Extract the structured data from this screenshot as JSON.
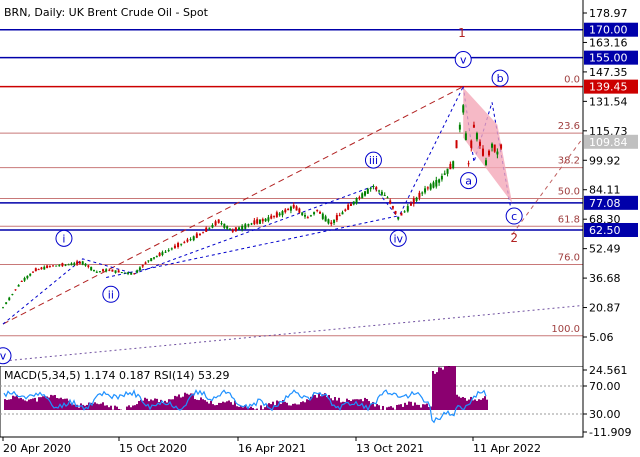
{
  "chart_data": {
    "type": "line",
    "title": "BRN, Daily:  UK Brent Crude Oil - Spot",
    "price_axis": {
      "min": -15.0,
      "max": 190.0,
      "ticks": [
        178.97,
        163.16,
        147.35,
        131.54,
        115.73,
        99.92,
        84.11,
        68.3,
        52.49,
        36.68,
        20.87,
        5.06
      ]
    },
    "time_axis": {
      "labels": [
        "20 Apr 2020",
        "15 Oct 2020",
        "16 Apr 2021",
        "13 Oct 2021",
        "11 Apr 2022"
      ]
    },
    "current_price": "109.84",
    "horizontal_levels": [
      {
        "value": 170.0,
        "label": "170.00",
        "color": "#0000aa"
      },
      {
        "value": 155.0,
        "label": "155.00",
        "color": "#0000aa"
      },
      {
        "value": 139.45,
        "label": "139.45",
        "color": "#cc0000"
      },
      {
        "value": 77.08,
        "label": "77.08",
        "color": "#0000aa"
      },
      {
        "value": 62.5,
        "label": "62.50",
        "color": "#0000aa"
      }
    ],
    "fibonacci_levels": [
      {
        "value": 139.45,
        "label": "0.0"
      },
      {
        "value": 114.5,
        "label": "23.6"
      },
      {
        "value": 96.0,
        "label": "38.2"
      },
      {
        "value": 79.4,
        "label": "50.0"
      },
      {
        "value": 64.5,
        "label": "61.8"
      },
      {
        "value": 44.0,
        "label": "76.0"
      },
      {
        "value": 5.7,
        "label": "100.0"
      }
    ],
    "wave_labels": {
      "minor": [
        "i",
        "ii",
        "iii",
        "iv",
        "v"
      ],
      "intermediate": [
        "1",
        "2"
      ],
      "correction": [
        "a",
        "b",
        "c"
      ],
      "origin": "v"
    },
    "price_path": [
      {
        "date": "2020-04-20",
        "value": 21
      },
      {
        "date": "2020-05-04",
        "value": 28
      },
      {
        "date": "2020-05-18",
        "value": 35
      },
      {
        "date": "2020-06-08",
        "value": 41
      },
      {
        "date": "2020-06-29",
        "value": 43
      },
      {
        "date": "2020-07-27",
        "value": 44
      },
      {
        "date": "2020-08-17",
        "value": 45
      },
      {
        "date": "2020-09-07",
        "value": 40
      },
      {
        "date": "2020-09-21",
        "value": 41
      },
      {
        "date": "2020-11-02",
        "value": 39
      },
      {
        "date": "2020-11-23",
        "value": 46
      },
      {
        "date": "2020-12-14",
        "value": 50
      },
      {
        "date": "2021-01-11",
        "value": 55
      },
      {
        "date": "2021-02-08",
        "value": 60
      },
      {
        "date": "2021-03-08",
        "value": 67
      },
      {
        "date": "2021-03-29",
        "value": 62
      },
      {
        "date": "2021-04-26",
        "value": 66
      },
      {
        "date": "2021-05-17",
        "value": 68
      },
      {
        "date": "2021-06-07",
        "value": 71
      },
      {
        "date": "2021-06-28",
        "value": 75
      },
      {
        "date": "2021-07-19",
        "value": 69
      },
      {
        "date": "2021-08-02",
        "value": 73
      },
      {
        "date": "2021-08-23",
        "value": 66
      },
      {
        "date": "2021-09-13",
        "value": 73
      },
      {
        "date": "2021-10-04",
        "value": 80
      },
      {
        "date": "2021-10-25",
        "value": 86
      },
      {
        "date": "2021-11-15",
        "value": 80
      },
      {
        "date": "2021-12-01",
        "value": 69
      },
      {
        "date": "2021-12-20",
        "value": 76
      },
      {
        "date": "2022-01-10",
        "value": 84
      },
      {
        "date": "2022-01-31",
        "value": 89
      },
      {
        "date": "2022-02-21",
        "value": 98
      },
      {
        "date": "2022-03-08",
        "value": 128
      },
      {
        "date": "2022-03-16",
        "value": 98
      },
      {
        "date": "2022-03-24",
        "value": 118
      },
      {
        "date": "2022-04-11",
        "value": 99
      },
      {
        "date": "2022-04-20",
        "value": 108
      },
      {
        "date": "2022-04-28",
        "value": 104
      },
      {
        "date": "2022-05-09",
        "value": 110
      }
    ]
  },
  "indicator": {
    "label": "MACD(5,34,5) 1.174 0.187 RSI(14) 53.29",
    "ticks": [
      "24.561",
      "70.00",
      "30.00",
      "-11.909"
    ],
    "rsi_color": "#1e90ff",
    "macd_color": "#8b0070"
  },
  "colors": {
    "bull_candle": "#008000",
    "bear_candle": "#cc0000",
    "wave_blue": "#0000cc",
    "wave_red": "#b22222",
    "triangle_fill": "#f4a8b8"
  }
}
